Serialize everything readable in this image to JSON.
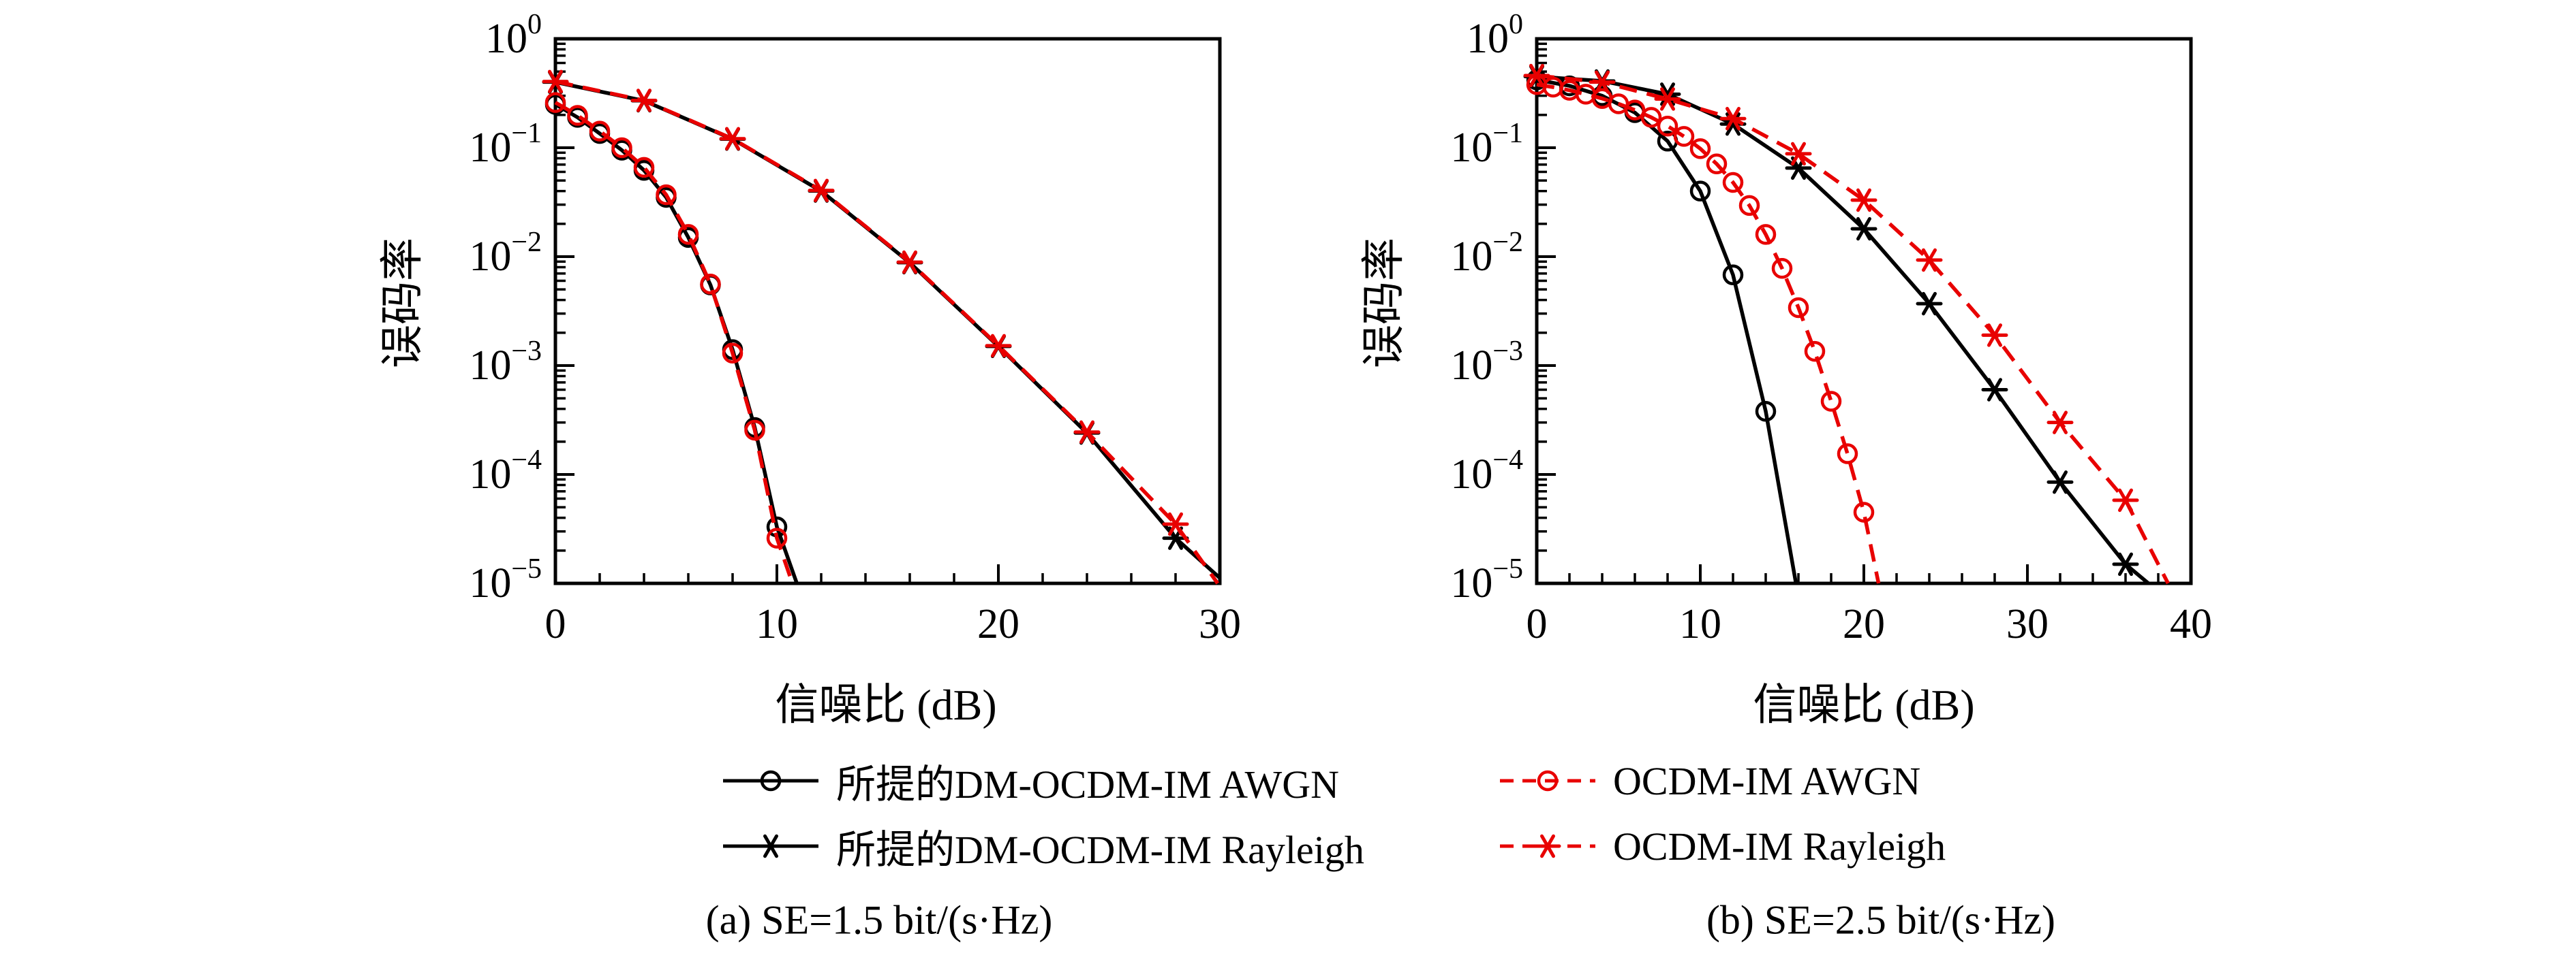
{
  "colors": {
    "black": "#000000",
    "red": "#e80000",
    "axis": "#000000",
    "background": "#ffffff"
  },
  "captions": {
    "a": "(a) SE=1.5 bit/(s·Hz)",
    "b": "(b) SE=2.5 bit/(s·Hz)"
  },
  "legend": {
    "items": [
      {
        "label": "所提的DM-OCDM-IM AWGN",
        "color": "#000000",
        "dash": "solid",
        "marker": "circle"
      },
      {
        "label": "OCDM-IM AWGN",
        "color": "#e80000",
        "dash": "dashed",
        "marker": "circle"
      },
      {
        "label": "所提的DM-OCDM-IM Rayleigh",
        "color": "#000000",
        "dash": "solid",
        "marker": "asterisk"
      },
      {
        "label": "OCDM-IM Rayleigh",
        "color": "#e80000",
        "dash": "dashed",
        "marker": "asterisk"
      }
    ]
  },
  "chart_data": [
    {
      "type": "line",
      "title": "(a) SE=1.5 bit/(s·Hz)",
      "xlabel": "信噪比 (dB)",
      "ylabel": "误码率",
      "xlim": [
        0,
        30
      ],
      "xticks": [
        0,
        10,
        20,
        30
      ],
      "xminor": 2,
      "ylog": true,
      "ylim": [
        1e-05,
        1
      ],
      "yticks": [
        0,
        -1,
        -2,
        -3,
        -4,
        -5
      ],
      "grid": false,
      "series": [
        {
          "id": "dm-ocdm-im-awgn",
          "name": "所提的DM-OCDM-IM AWGN",
          "color": "#000000",
          "dash": "solid",
          "marker": "circle",
          "x": [
            0,
            1,
            2,
            3,
            4,
            5,
            6,
            7,
            8,
            9,
            10
          ],
          "y": [
            0.25,
            0.19,
            0.135,
            0.095,
            0.062,
            0.035,
            0.015,
            0.0055,
            0.0014,
            0.00027,
            3.3e-05
          ],
          "end": [
            10.9,
            1e-05
          ]
        },
        {
          "id": "dm-ocdm-im-rayleigh",
          "name": "所提的DM-OCDM-IM Rayleigh",
          "color": "#000000",
          "dash": "solid",
          "marker": "asterisk",
          "x": [
            0,
            4,
            8,
            12,
            16,
            20,
            24,
            28
          ],
          "y": [
            0.4,
            0.27,
            0.12,
            0.04,
            0.0088,
            0.0015,
            0.00024,
            2.6e-05
          ],
          "end": [
            30,
            1.12e-05
          ]
        },
        {
          "id": "ocdm-im-awgn",
          "name": "OCDM-IM AWGN",
          "color": "#e80000",
          "dash": "dashed",
          "marker": "circle",
          "x": [
            0,
            1,
            2,
            3,
            4,
            5,
            6,
            7,
            8,
            9,
            10
          ],
          "y": [
            0.26,
            0.198,
            0.142,
            0.1,
            0.066,
            0.037,
            0.016,
            0.0056,
            0.0013,
            0.000255,
            2.6e-05
          ],
          "end": [
            10.7,
            1e-05
          ]
        },
        {
          "id": "ocdm-im-rayleigh",
          "name": "OCDM-IM Rayleigh",
          "color": "#e80000",
          "dash": "dashed",
          "marker": "asterisk",
          "x": [
            0,
            4,
            8,
            12,
            16,
            20,
            24,
            28
          ],
          "y": [
            0.405,
            0.272,
            0.121,
            0.0405,
            0.0089,
            0.00152,
            0.000245,
            3.5e-05
          ],
          "end": [
            29.9,
            1e-05
          ]
        }
      ]
    },
    {
      "type": "line",
      "title": "(b) SE=2.5 bit/(s·Hz)",
      "xlabel": "信噪比 (dB)",
      "ylabel": "误码率",
      "xlim": [
        0,
        40
      ],
      "xticks": [
        0,
        10,
        20,
        30,
        40
      ],
      "xminor": 2,
      "ylog": true,
      "ylim": [
        1e-05,
        1
      ],
      "yticks": [
        0,
        -1,
        -2,
        -3,
        -4,
        -5
      ],
      "grid": false,
      "series": [
        {
          "id": "dm-ocdm-im-awgn",
          "name": "所提的DM-OCDM-IM AWGN",
          "color": "#000000",
          "dash": "solid",
          "marker": "circle",
          "x": [
            0,
            2,
            4,
            6,
            8,
            10,
            12,
            14
          ],
          "y": [
            0.42,
            0.37,
            0.3,
            0.21,
            0.115,
            0.04,
            0.0068,
            0.00038
          ],
          "end": [
            15.85,
            1e-05
          ]
        },
        {
          "id": "dm-ocdm-im-rayleigh",
          "name": "所提的DM-OCDM-IM Rayleigh",
          "color": "#000000",
          "dash": "solid",
          "marker": "asterisk",
          "x": [
            0,
            4,
            8,
            12,
            16,
            20,
            24,
            28,
            32,
            36
          ],
          "y": [
            0.45,
            0.41,
            0.31,
            0.165,
            0.065,
            0.018,
            0.0037,
            0.0006,
            8.5e-05,
            1.5e-05
          ],
          "end": [
            37.4,
            1e-05
          ]
        },
        {
          "id": "ocdm-im-awgn",
          "name": "OCDM-IM AWGN",
          "color": "#e80000",
          "dash": "dashed",
          "marker": "circle",
          "x": [
            0,
            1,
            2,
            3,
            4,
            5,
            6,
            7,
            8,
            9,
            10,
            11,
            12,
            13,
            14,
            15,
            16,
            17,
            18,
            19,
            20
          ],
          "y": [
            0.38,
            0.36,
            0.337,
            0.31,
            0.283,
            0.253,
            0.222,
            0.19,
            0.158,
            0.127,
            0.098,
            0.071,
            0.048,
            0.0295,
            0.016,
            0.0078,
            0.0034,
            0.00135,
            0.00047,
            0.000155,
            4.5e-05
          ],
          "end": [
            20.9,
            1e-05
          ]
        },
        {
          "id": "ocdm-im-rayleigh",
          "name": "OCDM-IM Rayleigh",
          "color": "#e80000",
          "dash": "dashed",
          "marker": "asterisk",
          "x": [
            0,
            4,
            8,
            12,
            16,
            20,
            24,
            28,
            32,
            36
          ],
          "y": [
            0.46,
            0.4,
            0.28,
            0.185,
            0.088,
            0.033,
            0.0093,
            0.0019,
            0.0003,
            5.8e-05
          ],
          "end": [
            38.6,
            1e-05
          ]
        }
      ]
    }
  ]
}
